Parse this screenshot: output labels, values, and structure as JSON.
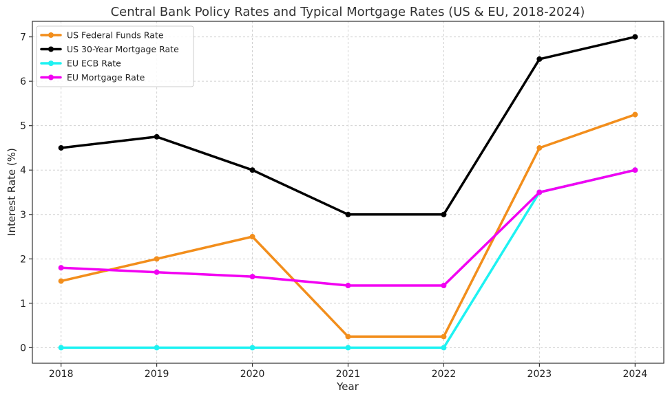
{
  "chart_data": {
    "type": "line",
    "title": "Central Bank Policy Rates and Typical Mortgage Rates (US & EU, 2018-2024)",
    "xlabel": "Year",
    "ylabel": "Interest Rate (%)",
    "x": [
      2018,
      2019,
      2020,
      2021,
      2022,
      2023,
      2024
    ],
    "x_tick_labels": [
      "2018",
      "2019",
      "2020",
      "2021",
      "2022",
      "2023",
      "2024"
    ],
    "xlim": [
      2017.7,
      2024.3
    ],
    "ylim": [
      -0.35,
      7.35
    ],
    "y_ticks": [
      0,
      1,
      2,
      3,
      4,
      5,
      6,
      7
    ],
    "y_tick_labels": [
      "0",
      "1",
      "2",
      "3",
      "4",
      "5",
      "6",
      "7"
    ],
    "grid": true,
    "legend_position": "top-left",
    "series": [
      {
        "name": "US Federal Funds Rate",
        "color": "#F28E1C",
        "values": [
          1.5,
          2.0,
          2.5,
          0.25,
          0.25,
          4.5,
          5.25
        ]
      },
      {
        "name": "US 30-Year Mortgage Rate",
        "color": "#000000",
        "values": [
          4.5,
          4.75,
          4.0,
          3.0,
          3.0,
          6.5,
          7.0
        ]
      },
      {
        "name": "EU ECB Rate",
        "color": "#1EF2F2",
        "values": [
          0.0,
          0.0,
          0.0,
          0.0,
          0.0,
          3.5,
          4.0
        ]
      },
      {
        "name": "EU Mortgage Rate",
        "color": "#F200F2",
        "values": [
          1.8,
          1.7,
          1.6,
          1.4,
          1.4,
          3.5,
          4.0
        ]
      }
    ]
  }
}
